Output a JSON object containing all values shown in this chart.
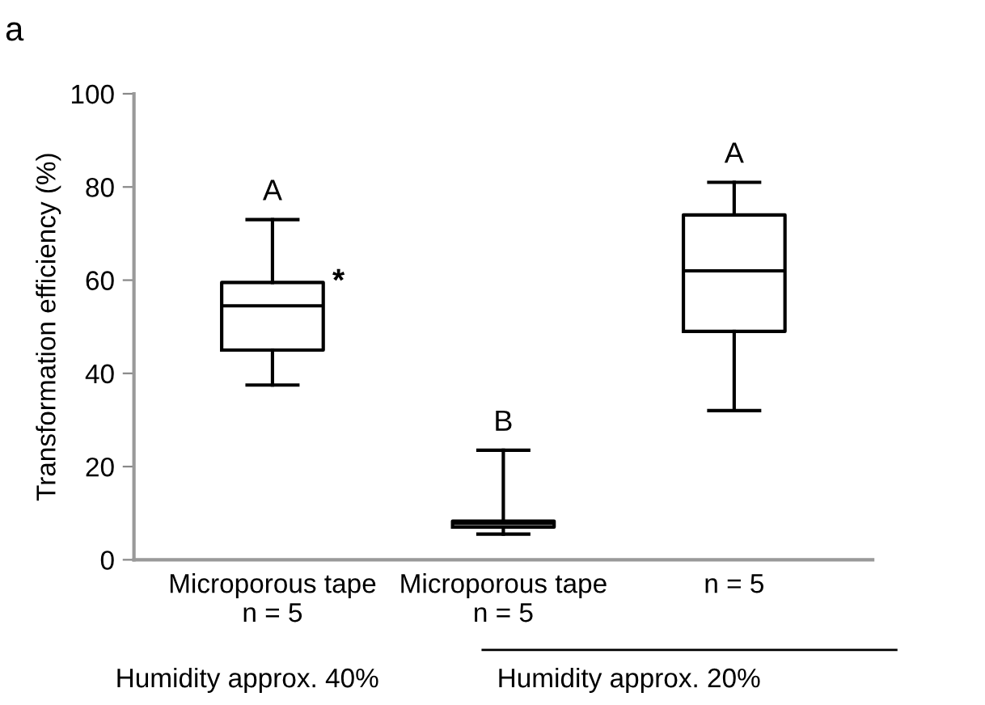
{
  "chart_data": {
    "type": "box",
    "title": "a",
    "ylabel": "Transformation efficiency (%)",
    "categories": [
      "Microporous tape\nn = 5",
      "Microporous tape\nn = 5",
      "n = 5"
    ],
    "boxes": [
      {
        "low": 37.5,
        "q1": 45,
        "median": 54.5,
        "q3": 59.5,
        "high": 73
      },
      {
        "low": 5.5,
        "q1": 7,
        "median": 7.8,
        "q3": 8.3,
        "high": 23.5
      },
      {
        "low": 32,
        "q1": 49,
        "median": 62,
        "q3": 74,
        "high": 81
      }
    ],
    "ylim": [
      0,
      100
    ],
    "yticks": [
      0,
      20,
      40,
      60,
      80,
      100
    ],
    "grid": false,
    "annotations": [
      "A",
      "B",
      "A",
      "*",
      "Humidity approx. 40%",
      "Humidity approx. 20%"
    ]
  }
}
